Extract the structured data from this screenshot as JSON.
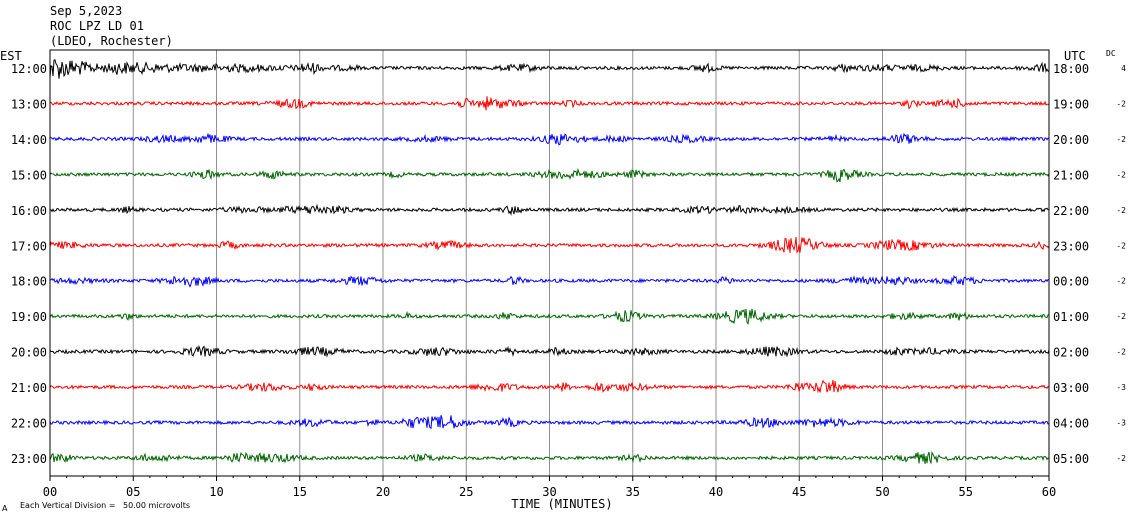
{
  "header": {
    "date": "Sep 5,2023",
    "station": "ROC LPZ LD 01",
    "network": "(LDEO, Rochester)"
  },
  "chart_data": {
    "type": "line",
    "title": "",
    "left_axis_label": "EST",
    "right_axis_label": "UTC",
    "dc_label": "DC",
    "xlabel": "TIME (MINUTES)",
    "xlim": [
      0,
      60
    ],
    "x_ticks": [
      "00",
      "05",
      "10",
      "15",
      "20",
      "25",
      "30",
      "35",
      "40",
      "45",
      "50",
      "55",
      "60"
    ],
    "footer_mark": "A",
    "footer_note": "Each Vertical Division =   50.00 microvolts",
    "colors": [
      "#000000",
      "#ff0000",
      "#0000ff",
      "#006400"
    ],
    "rows": [
      {
        "est": "12:00",
        "utc": "18:00",
        "dc": "4",
        "color": "#000000",
        "event": true
      },
      {
        "est": "13:00",
        "utc": "19:00",
        "dc": "-2",
        "color": "#ff0000"
      },
      {
        "est": "14:00",
        "utc": "20:00",
        "dc": "-2",
        "color": "#0000ff"
      },
      {
        "est": "15:00",
        "utc": "21:00",
        "dc": "-2",
        "color": "#006400"
      },
      {
        "est": "16:00",
        "utc": "22:00",
        "dc": "-2",
        "color": "#000000"
      },
      {
        "est": "17:00",
        "utc": "23:00",
        "dc": "-2",
        "color": "#ff0000"
      },
      {
        "est": "18:00",
        "utc": "00:00",
        "dc": "-2",
        "color": "#0000ff"
      },
      {
        "est": "19:00",
        "utc": "01:00",
        "dc": "-2",
        "color": "#006400"
      },
      {
        "est": "20:00",
        "utc": "02:00",
        "dc": "-2",
        "color": "#000000"
      },
      {
        "est": "21:00",
        "utc": "03:00",
        "dc": "-3",
        "color": "#ff0000"
      },
      {
        "est": "22:00",
        "utc": "04:00",
        "dc": "-3",
        "color": "#0000ff"
      },
      {
        "est": "23:00",
        "utc": "05:00",
        "dc": "-2",
        "color": "#006400"
      }
    ]
  }
}
